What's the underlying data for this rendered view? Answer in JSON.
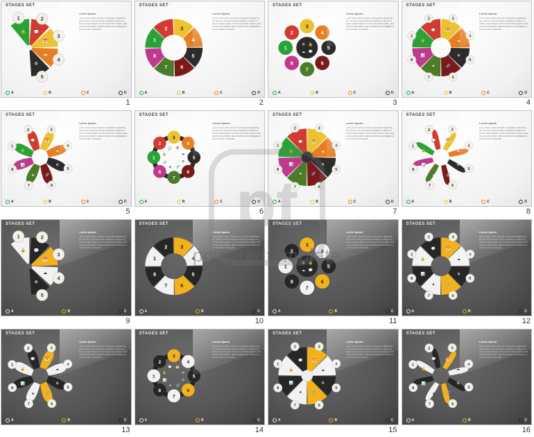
{
  "title_text": "STAGES SET",
  "lorem_title": "Lorem ipsum",
  "lorem": "Lorem ipsum dolor sit amet, consectetur adipiscing elit, sed do eiusmod tempor incididunt ut labore et dolore magna aliqua. Ut enim ad minim veniam, quis nostrud exercitation ullamco laboris nisi ut aliquip ex ea commodo consequat.",
  "watermark_text": "poweredtemplate",
  "icons": [
    "🔒",
    "💬",
    "📅",
    "☁",
    "⚙",
    "🔗",
    "★",
    "📊"
  ],
  "palettes": {
    "color": [
      "#2aa336",
      "#d33b30",
      "#ecc22e",
      "#e67e22",
      "#2c2c2c",
      "#7b1a1a",
      "#4a7c2a",
      "#c0398f"
    ],
    "gold": [
      "#f2f2f2",
      "#262626",
      "#f3b21b",
      "#f2f2f2",
      "#262626",
      "#f3b21b",
      "#f2f2f2",
      "#262626"
    ]
  },
  "legend_colors": {
    "color": [
      "#2aa336",
      "#ecc22e",
      "#e67e22",
      "#2c2c2c"
    ],
    "gold": [
      "#f2f2f2",
      "#f3b21b",
      "#262626",
      "#f2f2f2"
    ]
  },
  "legend_labels": [
    "A",
    "B",
    "C",
    "D"
  ],
  "slides": [
    {
      "n": 1,
      "theme": "light",
      "palette": "color",
      "shape": "fan5",
      "legend": 4,
      "txt": "right"
    },
    {
      "n": 2,
      "theme": "light",
      "palette": "color",
      "shape": "arrow8",
      "legend": 4,
      "txt": "right"
    },
    {
      "n": 3,
      "theme": "light",
      "palette": "color",
      "shape": "circ8",
      "legend": 4,
      "txt": "right"
    },
    {
      "n": 4,
      "theme": "light",
      "palette": "color",
      "shape": "wedge8",
      "legend": 4,
      "txt": "right"
    },
    {
      "n": 5,
      "theme": "light",
      "palette": "color",
      "shape": "petal8",
      "legend": 4,
      "txt": "right"
    },
    {
      "n": 6,
      "theme": "light",
      "palette": "color",
      "shape": "ring8",
      "legend": 4,
      "txt": "right"
    },
    {
      "n": 7,
      "theme": "light",
      "palette": "color",
      "shape": "wedge8b",
      "legend": 4,
      "txt": "right"
    },
    {
      "n": 8,
      "theme": "light",
      "palette": "color",
      "shape": "twist8",
      "legend": 4,
      "txt": "right"
    },
    {
      "n": 9,
      "theme": "dark",
      "palette": "gold",
      "shape": "fan5",
      "legend": 3,
      "txt": "right"
    },
    {
      "n": 10,
      "theme": "dark",
      "palette": "gold",
      "shape": "arrow8",
      "legend": 3,
      "txt": "right"
    },
    {
      "n": 11,
      "theme": "dark",
      "palette": "gold",
      "shape": "circ8",
      "legend": 3,
      "txt": "right"
    },
    {
      "n": 12,
      "theme": "dark",
      "palette": "gold",
      "shape": "wedge8",
      "legend": 3,
      "txt": "right"
    },
    {
      "n": 13,
      "theme": "dark",
      "palette": "gold",
      "shape": "petal8",
      "legend": 3,
      "txt": "right"
    },
    {
      "n": 14,
      "theme": "dark",
      "palette": "gold",
      "shape": "ring8",
      "legend": 3,
      "txt": "right"
    },
    {
      "n": 15,
      "theme": "dark",
      "palette": "gold",
      "shape": "wedge8b",
      "legend": 3,
      "txt": "right"
    },
    {
      "n": 16,
      "theme": "dark",
      "palette": "gold",
      "shape": "twist8",
      "legend": 3,
      "txt": "right"
    }
  ]
}
